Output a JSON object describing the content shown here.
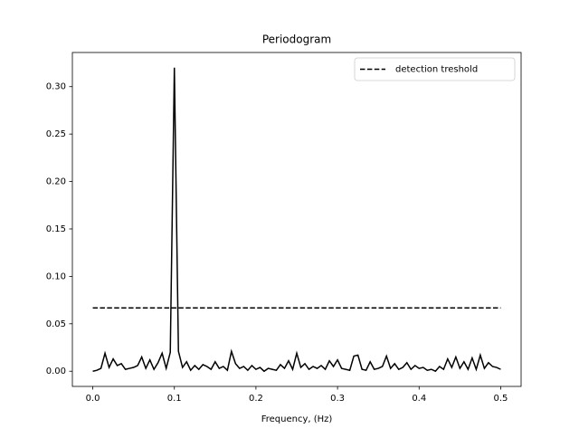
{
  "chart_data": {
    "type": "line",
    "title": "Periodogram",
    "x_label": "Frequency, (Hz)",
    "xlim": [
      -0.025,
      0.525
    ],
    "ylim": [
      -0.016,
      0.336
    ],
    "xticks": [
      {
        "value": 0,
        "label": "0.0"
      },
      {
        "value": 0.1,
        "label": "0.1"
      },
      {
        "value": 0.2,
        "label": "0.2"
      },
      {
        "value": 0.3,
        "label": "0.3"
      },
      {
        "value": 0.4,
        "label": "0.4"
      },
      {
        "value": 0.5,
        "label": "0.5"
      }
    ],
    "yticks": [
      {
        "value": 0,
        "label": "0.00"
      },
      {
        "value": 0.05,
        "label": "0.05"
      },
      {
        "value": 0.1,
        "label": "0.10"
      },
      {
        "value": 0.15,
        "label": "0.15"
      },
      {
        "value": 0.2,
        "label": "0.20"
      },
      {
        "value": 0.25,
        "label": "0.25"
      },
      {
        "value": 0.3,
        "label": "0.30"
      }
    ],
    "legend": "upper right",
    "series": [
      {
        "color": "#000000",
        "linestyle": "solid",
        "x": [
          0,
          0.005,
          0.01,
          0.015,
          0.02,
          0.025,
          0.03,
          0.035,
          0.04,
          0.045,
          0.05,
          0.055,
          0.06,
          0.065,
          0.07,
          0.075,
          0.08,
          0.085,
          0.09,
          0.095,
          0.1,
          0.105,
          0.11,
          0.115,
          0.12,
          0.125,
          0.13,
          0.135,
          0.14,
          0.145,
          0.15,
          0.155,
          0.16,
          0.165,
          0.17,
          0.175,
          0.18,
          0.185,
          0.19,
          0.195,
          0.2,
          0.205,
          0.21,
          0.215,
          0.22,
          0.225,
          0.23,
          0.235,
          0.24,
          0.245,
          0.25,
          0.255,
          0.26,
          0.265,
          0.27,
          0.275,
          0.28,
          0.285,
          0.29,
          0.295,
          0.3,
          0.305,
          0.31,
          0.315,
          0.32,
          0.325,
          0.33,
          0.335,
          0.34,
          0.345,
          0.35,
          0.355,
          0.36,
          0.365,
          0.37,
          0.375,
          0.38,
          0.385,
          0.39,
          0.395,
          0.4,
          0.405,
          0.41,
          0.415,
          0.42,
          0.425,
          0.43,
          0.435,
          0.44,
          0.445,
          0.45,
          0.455,
          0.46,
          0.465,
          0.47,
          0.475,
          0.48,
          0.485,
          0.49,
          0.495,
          0.5
        ],
        "values": [
          0,
          0.001,
          0.003,
          0.019,
          0.004,
          0.013,
          0.006,
          0.008,
          0.002,
          0.003,
          0.004,
          0.006,
          0.015,
          0.003,
          0.012,
          0.002,
          0.009,
          0.019,
          0.003,
          0.02,
          0.32,
          0.021,
          0.004,
          0.01,
          0.001,
          0.006,
          0.002,
          0.007,
          0.005,
          0.002,
          0.01,
          0.003,
          0.005,
          0.001,
          0.021,
          0.008,
          0.003,
          0.005,
          0.001,
          0.006,
          0.002,
          0.004,
          0,
          0.003,
          0.002,
          0.001,
          0.007,
          0.003,
          0.011,
          0.002,
          0.019,
          0.004,
          0.008,
          0.002,
          0.005,
          0.003,
          0.006,
          0.002,
          0.011,
          0.005,
          0.012,
          0.003,
          0.002,
          0.001,
          0.016,
          0.017,
          0.002,
          0.001,
          0.01,
          0.002,
          0.003,
          0.005,
          0.016,
          0.003,
          0.008,
          0.002,
          0.004,
          0.009,
          0.002,
          0.006,
          0.003,
          0.004,
          0.001,
          0.002,
          0,
          0.005,
          0.002,
          0.013,
          0.004,
          0.015,
          0.003,
          0.01,
          0.002,
          0.014,
          0.002,
          0.017,
          0.003,
          0.009,
          0.005,
          0.004,
          0.002
        ]
      },
      {
        "name": "detection treshold",
        "color": "#000000",
        "linestyle": "dashed",
        "x": [
          0,
          0.5
        ],
        "values": [
          0.0667,
          0.0667
        ]
      }
    ]
  }
}
